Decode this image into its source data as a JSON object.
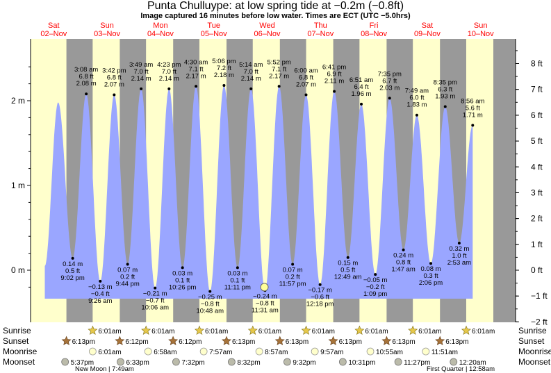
{
  "title": "Punta Chulluype: at low  spring tide at −0.2m (−0.8ft)",
  "subtitle": "Image captured 16 minutes before low water. Times are ECT (UTC −5.0hrs)",
  "chart_data": {
    "type": "area",
    "title": "Punta Chulluype: at low  spring tide at −0.2m (−0.8ft)",
    "subtitle": "Image captured 16 minutes before low water. Times are ECT (UTC −5.0hrs)",
    "x_unit": "hours from 00:00 Sat 02-Nov (ECT)",
    "ylabel_left": "",
    "ylabel_right": "",
    "ylim_m": [
      -0.2,
      2.45
    ],
    "ylim_ft": [
      -2,
      8.8
    ],
    "yticks_m": [
      {
        "value": 2,
        "label": "2 m"
      },
      {
        "value": 1,
        "label": "1 m"
      },
      {
        "value": 0,
        "label": "0 m"
      }
    ],
    "yticks_ft": [
      {
        "value": 8,
        "label": "8 ft"
      },
      {
        "value": 7,
        "label": "7 ft"
      },
      {
        "value": 6,
        "label": "6 ft"
      },
      {
        "value": 5,
        "label": "5 ft"
      },
      {
        "value": 4,
        "label": "4 ft"
      },
      {
        "value": 3,
        "label": "3 ft"
      },
      {
        "value": 2,
        "label": "2 ft"
      },
      {
        "value": 1,
        "label": "1 ft"
      },
      {
        "value": 0,
        "label": "0 ft"
      },
      {
        "value": -1,
        "label": "−1 ft"
      },
      {
        "value": -2,
        "label": "−2 ft"
      }
    ],
    "days": [
      {
        "name": "Sat",
        "date": "02–Nov"
      },
      {
        "name": "Sun",
        "date": "03–Nov"
      },
      {
        "name": "Mon",
        "date": "04–Nov"
      },
      {
        "name": "Tue",
        "date": "05–Nov"
      },
      {
        "name": "Wed",
        "date": "06–Nov"
      },
      {
        "name": "Thu",
        "date": "07–Nov"
      },
      {
        "name": "Fri",
        "date": "08–Nov"
      },
      {
        "name": "Sat",
        "date": "09–Nov"
      },
      {
        "name": "Sun",
        "date": "10–Nov"
      }
    ],
    "sunrise_hour": 6.02,
    "sunset_hour": 18.22,
    "tides": [
      {
        "kind": "high",
        "hour": 14.5,
        "m": 1.98
      },
      {
        "kind": "low",
        "hour": 21.03,
        "m": 0.14,
        "labels": [
          "0.14 m",
          "0.5 ft",
          "9:02 pm"
        ]
      },
      {
        "kind": "high",
        "hour": 27.13,
        "m": 2.08,
        "labels": [
          "3:08 am",
          "6.8 ft",
          "2.08 m"
        ]
      },
      {
        "kind": "low",
        "hour": 33.43,
        "m": -0.13,
        "labels": [
          "−0.13 m",
          "−0.4 ft",
          "9:26 am"
        ]
      },
      {
        "kind": "high",
        "hour": 39.7,
        "m": 2.07,
        "labels": [
          "3:42 pm",
          "6.8 ft",
          "2.07 m"
        ]
      },
      {
        "kind": "low",
        "hour": 45.73,
        "m": 0.07,
        "labels": [
          "0.07 m",
          "0.2 ft",
          "9:44 pm"
        ]
      },
      {
        "kind": "high",
        "hour": 51.82,
        "m": 2.14,
        "labels": [
          "3:49 am",
          "7.0 ft",
          "2.14 m"
        ]
      },
      {
        "kind": "low",
        "hour": 58.1,
        "m": -0.21,
        "labels": [
          "−0.21 m",
          "−0.7 ft",
          "10:06 am"
        ]
      },
      {
        "kind": "high",
        "hour": 64.38,
        "m": 2.14,
        "labels": [
          "4:23 pm",
          "7.0 ft",
          "2.14 m"
        ]
      },
      {
        "kind": "low",
        "hour": 70.43,
        "m": 0.03,
        "labels": [
          "0.03 m",
          "0.1 ft",
          "10:26 pm"
        ]
      },
      {
        "kind": "high",
        "hour": 76.5,
        "m": 2.17,
        "labels": [
          "4:30 am",
          "7.1 ft",
          "2.17 m"
        ]
      },
      {
        "kind": "low",
        "hour": 82.8,
        "m": -0.25,
        "labels": [
          "−0.25 m",
          "−0.8 ft",
          "10:48 am"
        ]
      },
      {
        "kind": "high",
        "hour": 89.1,
        "m": 2.18,
        "labels": [
          "5:06 pm",
          "7.2 ft",
          "2.18 m"
        ]
      },
      {
        "kind": "low",
        "hour": 95.18,
        "m": 0.03,
        "labels": [
          "0.03 m",
          "0.1 ft",
          "11:11 pm"
        ]
      },
      {
        "kind": "high",
        "hour": 101.23,
        "m": 2.14,
        "labels": [
          "5:14 am",
          "7.0 ft",
          "2.14 m"
        ]
      },
      {
        "kind": "low",
        "hour": 107.52,
        "m": -0.24,
        "labels": [
          "−0.24 m",
          "−0.8 ft",
          "11:31 am"
        ]
      },
      {
        "kind": "high",
        "hour": 113.87,
        "m": 2.17,
        "labels": [
          "5:52 pm",
          "7.1 ft",
          "2.17 m"
        ]
      },
      {
        "kind": "low",
        "hour": 119.95,
        "m": 0.07,
        "labels": [
          "0.07 m",
          "0.2 ft",
          "11:57 pm"
        ]
      },
      {
        "kind": "high",
        "hour": 126.0,
        "m": 2.07,
        "labels": [
          "6:00 am",
          "6.8 ft",
          "2.07 m"
        ]
      },
      {
        "kind": "low",
        "hour": 132.3,
        "m": -0.17,
        "labels": [
          "−0.17 m",
          "−0.6 ft",
          "12:18 pm"
        ]
      },
      {
        "kind": "high",
        "hour": 138.68,
        "m": 2.11,
        "labels": [
          "6:41 pm",
          "6.9 ft",
          "2.11 m"
        ]
      },
      {
        "kind": "low",
        "hour": 144.82,
        "m": 0.15,
        "labels": [
          "0.15 m",
          "0.5 ft",
          "12:49 am"
        ]
      },
      {
        "kind": "high",
        "hour": 150.85,
        "m": 1.96,
        "labels": [
          "6:51 am",
          "6.4 ft",
          "1.96 m"
        ]
      },
      {
        "kind": "low",
        "hour": 157.15,
        "m": -0.05,
        "labels": [
          "−0.05 m",
          "−0.2 ft",
          "1:09 pm"
        ]
      },
      {
        "kind": "high",
        "hour": 163.58,
        "m": 2.03,
        "labels": [
          "7:35 pm",
          "6.7 ft",
          "2.03 m"
        ]
      },
      {
        "kind": "low",
        "hour": 169.78,
        "m": 0.24,
        "labels": [
          "0.24 m",
          "0.8 ft",
          "1:47 am"
        ]
      },
      {
        "kind": "high",
        "hour": 175.82,
        "m": 1.83,
        "labels": [
          "7:49 am",
          "6.0 ft",
          "1.83 m"
        ]
      },
      {
        "kind": "low",
        "hour": 182.1,
        "m": 0.08,
        "labels": [
          "0.08 m",
          "0.3 ft",
          "2:06 pm"
        ]
      },
      {
        "kind": "high",
        "hour": 188.58,
        "m": 1.93,
        "labels": [
          "8:35 pm",
          "6.3 ft",
          "1.93 m"
        ]
      },
      {
        "kind": "low",
        "hour": 194.88,
        "m": 0.32,
        "labels": [
          "0.32 m",
          "1.0 ft",
          "2:53 am"
        ]
      },
      {
        "kind": "high",
        "hour": 200.93,
        "m": 1.71,
        "labels": [
          "8:56 am",
          "5.6 ft",
          "1.71 m"
        ]
      }
    ],
    "current_time_hour": 107.25,
    "current_level_m": -0.2,
    "rows": {
      "sunrise": {
        "label": "Sunrise",
        "items": [
          {
            "hour": 30.02,
            "t": "6:01am"
          },
          {
            "hour": 54.02,
            "t": "6:01am"
          },
          {
            "hour": 78.02,
            "t": "6:01am"
          },
          {
            "hour": 102.02,
            "t": "6:01am"
          },
          {
            "hour": 126.02,
            "t": "6:01am"
          },
          {
            "hour": 150.02,
            "t": "6:01am"
          },
          {
            "hour": 174.02,
            "t": "6:01am"
          },
          {
            "hour": 198.02,
            "t": "6:01am"
          }
        ]
      },
      "sunset": {
        "label": "Sunset",
        "items": [
          {
            "hour": 18.22,
            "t": "6:13pm"
          },
          {
            "hour": 42.2,
            "t": "6:12pm"
          },
          {
            "hour": 66.2,
            "t": "6:12pm"
          },
          {
            "hour": 90.22,
            "t": "6:13pm"
          },
          {
            "hour": 114.22,
            "t": "6:13pm"
          },
          {
            "hour": 138.22,
            "t": "6:13pm"
          },
          {
            "hour": 162.22,
            "t": "6:13pm"
          },
          {
            "hour": 186.22,
            "t": "6:13pm"
          }
        ]
      },
      "moonrise": {
        "label": "Moonrise",
        "items": [
          {
            "hour": 30.02,
            "t": "6:01am"
          },
          {
            "hour": 54.97,
            "t": "6:58am"
          },
          {
            "hour": 79.95,
            "t": "7:57am"
          },
          {
            "hour": 104.95,
            "t": "8:57am"
          },
          {
            "hour": 129.95,
            "t": "9:57am"
          },
          {
            "hour": 154.92,
            "t": "10:55am"
          },
          {
            "hour": 179.85,
            "t": "11:51am"
          }
        ]
      },
      "moonset": {
        "label": "Moonset",
        "items": [
          {
            "hour": 17.62,
            "t": "5:37pm"
          },
          {
            "hour": 42.55,
            "t": "6:33pm"
          },
          {
            "hour": 67.53,
            "t": "7:32pm"
          },
          {
            "hour": 92.53,
            "t": "8:32pm"
          },
          {
            "hour": 117.53,
            "t": "9:32pm"
          },
          {
            "hour": 142.52,
            "t": "10:31pm"
          },
          {
            "hour": 167.45,
            "t": "11:27pm"
          },
          {
            "hour": 192.33,
            "t": "12:20am"
          }
        ]
      }
    },
    "moon_phases": [
      {
        "t": "New Moon | 7:49am"
      },
      {
        "t": "First Quarter | 12:58am"
      }
    ],
    "colors": {
      "day": "#ffffcc",
      "night": "#999999",
      "water": "#9aa6ff",
      "day_label": "#ff0000",
      "marker": "#ffff99"
    }
  }
}
